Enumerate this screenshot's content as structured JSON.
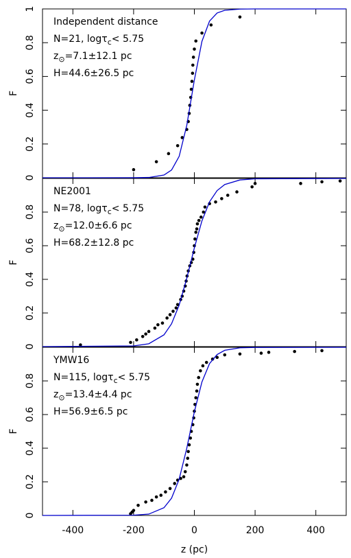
{
  "chart_data": [
    {
      "type": "scatter",
      "ylabel": "F",
      "annotation": [
        [
          "Independent distance"
        ],
        [
          "N=21, log",
          "τ",
          {
            "sub": "c"
          },
          "< 5.75"
        ],
        [
          "z",
          {
            "sub": "⊙"
          },
          "=7.1±12.1 pc"
        ],
        [
          "H=44.6±26.5 pc"
        ]
      ],
      "xlim": [
        -500,
        500
      ],
      "xticks": [
        -400,
        -200,
        0,
        200,
        400
      ],
      "ylim": [
        0,
        1
      ],
      "yticks": [
        0,
        0.2,
        0.4,
        0.6,
        0.8,
        1
      ],
      "series": [
        {
          "color": "#000000",
          "style": "points",
          "x": [
            -200,
            -125,
            -85,
            -55,
            -40,
            -25,
            -20,
            -17,
            -15,
            -12,
            -10,
            -8,
            -6,
            -5,
            -3,
            0,
            5,
            25,
            55,
            150
          ],
          "values": [
            0.048,
            0.095,
            0.143,
            0.19,
            0.238,
            0.286,
            0.333,
            0.381,
            0.429,
            0.476,
            0.524,
            0.571,
            0.619,
            0.667,
            0.714,
            0.762,
            0.81,
            0.857,
            0.905,
            0.952
          ]
        },
        {
          "color": "#0000cc",
          "style": "line",
          "x": [
            -500,
            -200,
            -150,
            -100,
            -75,
            -50,
            -25,
            0,
            25,
            50,
            75,
            100,
            150,
            200,
            500
          ],
          "values": [
            0,
            0.0002,
            0.0017,
            0.016,
            0.046,
            0.127,
            0.31,
            0.579,
            0.808,
            0.928,
            0.976,
            0.992,
            0.9991,
            1,
            1
          ]
        }
      ]
    },
    {
      "type": "scatter",
      "ylabel": "F",
      "annotation": [
        [
          "NE2001"
        ],
        [
          "N=78, log",
          "τ",
          {
            "sub": "c"
          },
          "< 5.75"
        ],
        [
          "z",
          {
            "sub": "⊙"
          },
          "=12.0±6.6 pc"
        ],
        [
          "H=68.2±12.8 pc"
        ]
      ],
      "xlim": [
        -500,
        500
      ],
      "xticks": [
        -400,
        -200,
        0,
        200,
        400
      ],
      "ylim": [
        0,
        1
      ],
      "yticks": [
        0,
        0.2,
        0.4,
        0.6,
        0.8
      ],
      "series": [
        {
          "color": "#000000",
          "style": "points",
          "x": [
            -375,
            -210,
            -190,
            -170,
            -160,
            -150,
            -130,
            -120,
            -105,
            -90,
            -80,
            -70,
            -60,
            -55,
            -45,
            -40,
            -35,
            -30,
            -27,
            -24,
            -20,
            -15,
            -10,
            -5,
            -2,
            0,
            2,
            5,
            8,
            10,
            15,
            22,
            30,
            35,
            50,
            70,
            90,
            110,
            140,
            190,
            200,
            350,
            420,
            480
          ],
          "values": [
            0.01,
            0.025,
            0.04,
            0.06,
            0.075,
            0.09,
            0.11,
            0.13,
            0.14,
            0.17,
            0.19,
            0.21,
            0.23,
            0.25,
            0.28,
            0.3,
            0.33,
            0.36,
            0.39,
            0.42,
            0.45,
            0.48,
            0.5,
            0.52,
            0.56,
            0.6,
            0.64,
            0.68,
            0.7,
            0.73,
            0.75,
            0.77,
            0.8,
            0.83,
            0.85,
            0.86,
            0.88,
            0.9,
            0.92,
            0.95,
            0.97,
            0.97,
            0.98,
            0.985
          ]
        },
        {
          "color": "#0000cc",
          "style": "line",
          "x": [
            -500,
            -200,
            -150,
            -100,
            -75,
            -50,
            -25,
            0,
            25,
            50,
            75,
            100,
            150,
            200,
            500
          ],
          "values": [
            0,
            0.004,
            0.017,
            0.07,
            0.136,
            0.247,
            0.406,
            0.587,
            0.748,
            0.861,
            0.928,
            0.964,
            0.991,
            0.998,
            1
          ]
        }
      ]
    },
    {
      "type": "scatter",
      "ylabel": "F",
      "xlabel": "z (pc)",
      "annotation": [
        [
          "YMW16"
        ],
        [
          "N=115, log",
          "τ",
          {
            "sub": "c"
          },
          "< 5.75"
        ],
        [
          "z",
          {
            "sub": "⊙"
          },
          "=13.4±4.4 pc"
        ],
        [
          "H=56.9±6.5 pc"
        ]
      ],
      "xlim": [
        -500,
        500
      ],
      "xticks": [
        -400,
        -200,
        0,
        200,
        400
      ],
      "ylim": [
        0,
        1
      ],
      "yticks": [
        0,
        0.2,
        0.4,
        0.6,
        0.8
      ],
      "series": [
        {
          "color": "#000000",
          "style": "points",
          "x": [
            -210,
            -205,
            -200,
            -185,
            -160,
            -140,
            -125,
            -110,
            -95,
            -80,
            -65,
            -55,
            -45,
            -35,
            -30,
            -25,
            -22,
            -20,
            -17,
            -13,
            -10,
            -5,
            -2,
            0,
            2,
            5,
            8,
            10,
            14,
            20,
            28,
            40,
            60,
            75,
            100,
            150,
            220,
            245,
            330,
            420
          ],
          "values": [
            0.01,
            0.02,
            0.03,
            0.06,
            0.08,
            0.09,
            0.11,
            0.12,
            0.14,
            0.16,
            0.19,
            0.21,
            0.22,
            0.23,
            0.26,
            0.3,
            0.34,
            0.38,
            0.42,
            0.46,
            0.5,
            0.54,
            0.58,
            0.62,
            0.66,
            0.7,
            0.74,
            0.78,
            0.82,
            0.86,
            0.89,
            0.91,
            0.93,
            0.94,
            0.955,
            0.96,
            0.965,
            0.97,
            0.975,
            0.98
          ]
        },
        {
          "color": "#0000cc",
          "style": "line",
          "x": [
            -500,
            -200,
            -150,
            -100,
            -75,
            -50,
            -25,
            0,
            25,
            50,
            75,
            100,
            150,
            200,
            500
          ],
          "values": [
            0,
            0.0014,
            0.008,
            0.046,
            0.103,
            0.216,
            0.399,
            0.616,
            0.794,
            0.903,
            0.957,
            0.982,
            0.997,
            0.9989,
            1
          ]
        }
      ]
    }
  ]
}
